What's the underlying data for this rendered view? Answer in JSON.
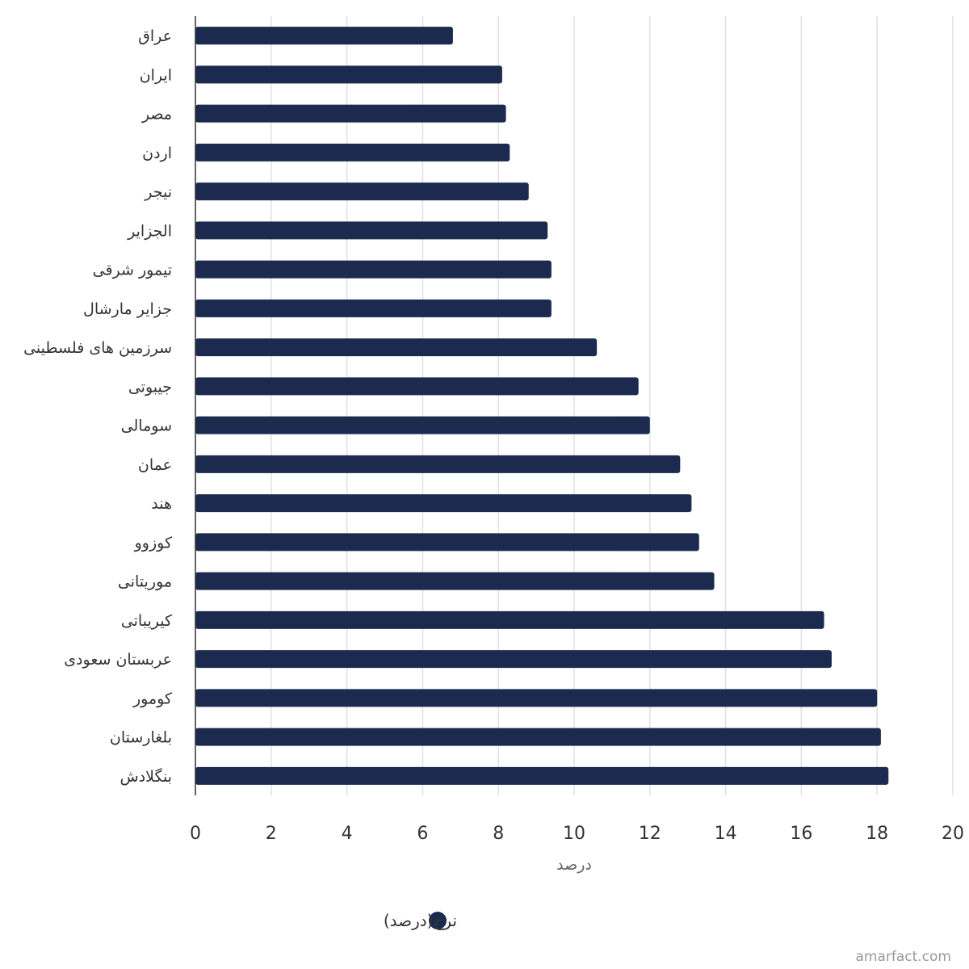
{
  "chart_data": {
    "type": "bar",
    "orientation": "horizontal",
    "categories": [
      "عراق",
      "ایران",
      "مصر",
      "اردن",
      "نیجر",
      "الجزایر",
      "تیمور شرقی",
      "جزایر مارشال",
      "سرزمین های فلسطینی",
      "جیبوتی",
      "سومالی",
      "عمان",
      "هند",
      "کوزوو",
      "موریتانی",
      "کیریباتی",
      "عربستان سعودی",
      "کومور",
      "بلغارستان",
      "بنگلادش"
    ],
    "series": [
      {
        "name": "نرخ(درصد)",
        "color": "#1b2a4e",
        "values": [
          6.8,
          8.1,
          8.2,
          8.3,
          8.8,
          9.3,
          9.4,
          9.4,
          10.6,
          11.7,
          12.0,
          12.8,
          13.1,
          13.3,
          13.7,
          16.6,
          16.8,
          18.0,
          18.1,
          18.3
        ]
      }
    ],
    "xlabel": "درصد",
    "xlim": [
      0,
      20
    ],
    "xticks": [
      "0",
      "2",
      "4",
      "6",
      "8",
      "10",
      "12",
      "14",
      "16",
      "18",
      "20"
    ],
    "grid": true,
    "legend_position": "bottom"
  },
  "credit": "amarfact.com"
}
